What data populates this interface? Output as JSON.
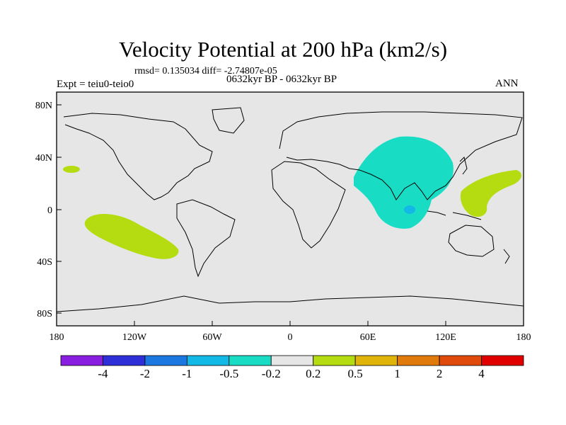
{
  "header": {
    "title": "Velocity Potential at 200 hPa (km2/s)",
    "stats": "rmsd= 0.135034 diff= -2.74807e-05",
    "experiment": "Expt = teiu0-teio0",
    "period": "0632kyr BP - 0632kyr BP",
    "season": "ANN"
  },
  "axes": {
    "lat_ticks": [
      "80N",
      "40N",
      "0",
      "40S",
      "80S"
    ],
    "lon_ticks": [
      "180",
      "120W",
      "60W",
      "0",
      "60E",
      "120E",
      "180"
    ]
  },
  "colorbar": {
    "colors": [
      "#8a1ee0",
      "#2f2fd8",
      "#1a78e0",
      "#12b8e6",
      "#18dcc4",
      "#e6e6e6",
      "#b4dc10",
      "#e0b408",
      "#e07a0a",
      "#e04a0a",
      "#e00000"
    ],
    "labels": [
      "-4",
      "-2",
      "-1",
      "-0.5",
      "-0.2",
      "0.2",
      "0.5",
      "1",
      "2",
      "4"
    ]
  },
  "colors": {
    "ocean": "#e6e6e6",
    "positive_light": "#b4dc10",
    "negative_light": "#18dcc4",
    "negative_core": "#12b8e6"
  }
}
